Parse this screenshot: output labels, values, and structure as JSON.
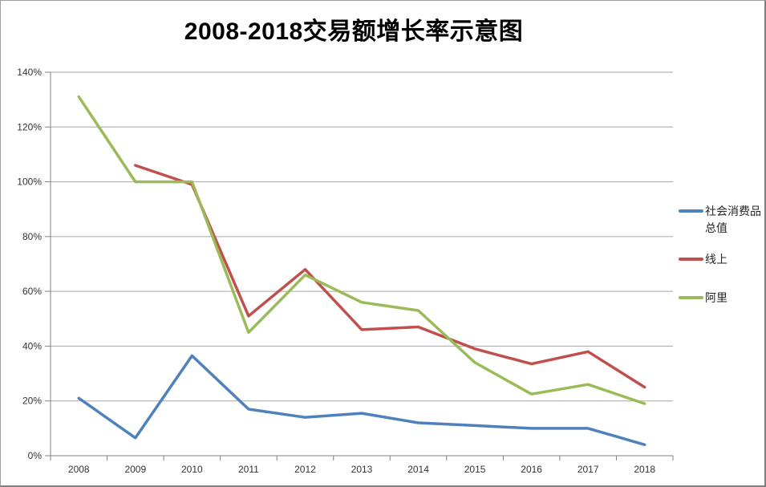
{
  "window": {
    "background": "#ffffff",
    "frame_border_color": "#808080"
  },
  "chart_data": {
    "type": "line",
    "title": "2008-2018交易额增长率示意图",
    "categories": [
      "2008",
      "2009",
      "2010",
      "2011",
      "2012",
      "2013",
      "2014",
      "2015",
      "2016",
      "2017",
      "2018"
    ],
    "series": [
      {
        "name": "社会消费品总值",
        "color": "#4F81BD",
        "values": [
          21,
          6.5,
          36.5,
          17,
          14,
          15.5,
          12,
          11,
          10,
          10,
          4
        ]
      },
      {
        "name": "线上",
        "color": "#C0504D",
        "values": [
          null,
          106,
          99,
          51,
          68,
          46,
          47,
          39,
          33.5,
          38,
          25
        ]
      },
      {
        "name": "阿里",
        "color": "#9BBB59",
        "values": [
          131,
          100,
          100,
          45,
          66,
          56,
          53,
          34,
          22.5,
          26,
          19
        ]
      }
    ],
    "y_axis": {
      "min": 0,
      "max": 140,
      "step": 20,
      "unit": "percent",
      "tick_labels": [
        "0%",
        "20%",
        "40%",
        "60%",
        "80%",
        "100%",
        "120%",
        "140%"
      ]
    },
    "x_axis": {
      "tick_labels": [
        "2008",
        "2009",
        "2010",
        "2011",
        "2012",
        "2013",
        "2014",
        "2015",
        "2016",
        "2017",
        "2018"
      ]
    },
    "grid": true,
    "legend_position": "right",
    "colors": {
      "gridline": "#A6A6A6",
      "axis": "#808080",
      "tick_text": "#333333"
    }
  }
}
